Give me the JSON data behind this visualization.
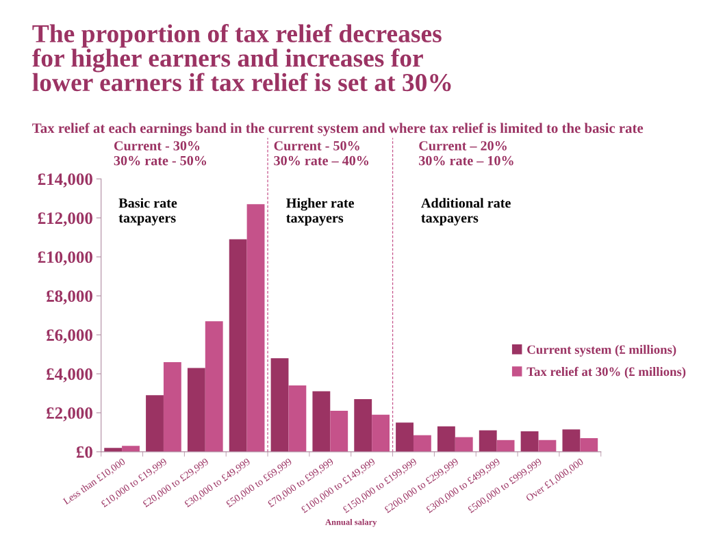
{
  "chart_data": {
    "type": "bar",
    "title": "The proportion of tax relief decreases\nfor higher earners and increases for\nlower earners if tax relief is set at 30%",
    "subtitle": "Tax relief at each earnings band in the current system and where tax relief is limited to the basic rate",
    "xlabel": "Annual salary",
    "categories": [
      "Less than £10,000",
      "£10,000 to £19,999",
      "£20,000 to £29,999",
      "£30,000 to £49,999",
      "£50,000 to £69,999",
      "£70,000 to £99,999",
      "£100,000 to £149,999",
      "£150,000 to £199,999",
      "£200,000 to £299,999",
      "£300,000 to £499,999",
      "£500,000 to £999,999",
      "Over £1,000,000"
    ],
    "series": [
      {
        "name": "Current system (£ millions)",
        "color": "#9b3363",
        "values": [
          200,
          2900,
          4300,
          10900,
          4800,
          3100,
          2700,
          1500,
          1300,
          1100,
          1050,
          1150
        ]
      },
      {
        "name": "Tax relief at 30% (£ millions)",
        "color": "#c5528a",
        "values": [
          300,
          4600,
          6700,
          12700,
          3400,
          2100,
          1900,
          850,
          750,
          600,
          600,
          700
        ]
      }
    ],
    "ylim": [
      0,
      14000
    ],
    "yticks": [
      {
        "value": 0,
        "label": "£0"
      },
      {
        "value": 2000,
        "label": "£2,000"
      },
      {
        "value": 4000,
        "label": "£4,000"
      },
      {
        "value": 6000,
        "label": "£6,000"
      },
      {
        "value": 8000,
        "label": "£8,000"
      },
      {
        "value": 10000,
        "label": "£10,000"
      },
      {
        "value": 12000,
        "label": "£12,000"
      },
      {
        "value": 14000,
        "label": "£14,000"
      }
    ],
    "annotations": [
      "Current - 30%\n30% rate - 50%",
      "Current - 50%\n30% rate – 40%",
      "Current – 20%\n30% rate – 10%",
      "Basic rate\ntaxpayers",
      "Higher rate\ntaxpayers",
      "Additional rate\ntaxpayers"
    ],
    "grid": false,
    "legend": "right"
  }
}
